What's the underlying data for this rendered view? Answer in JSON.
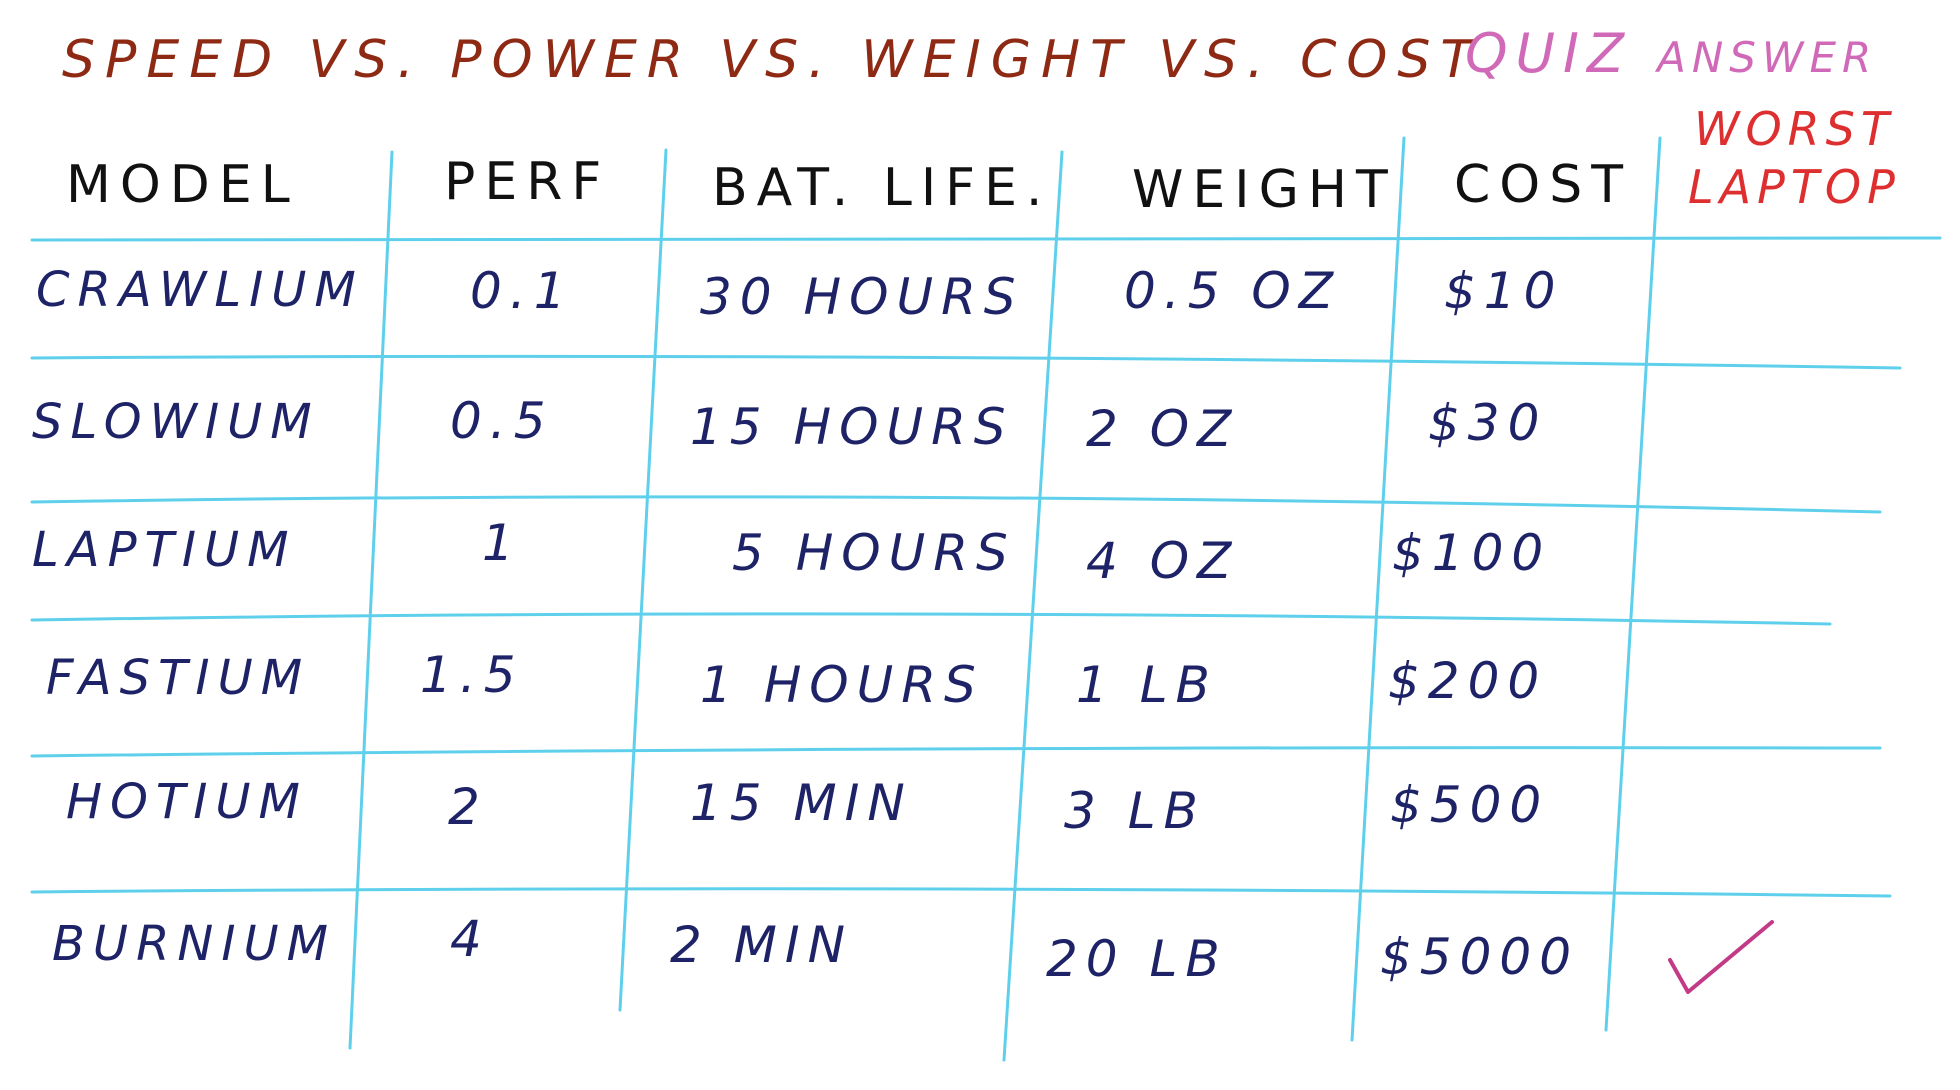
{
  "title": "SPEED VS. POWER VS. WEIGHT VS. COST",
  "quiz": {
    "label": "QUIZ",
    "answer": "ANSWER"
  },
  "worst_column": {
    "line1": "WORST",
    "line2": "LAPTOP"
  },
  "table": {
    "headers": [
      "MODEL",
      "PERF",
      "BAT. LIFE.",
      "WEIGHT",
      "COST"
    ],
    "rows": [
      {
        "model": "CRAWLIUM",
        "perf": "0.1",
        "battery": "30 HOURS",
        "weight": "0.5 OZ",
        "cost": "$10",
        "worst": false
      },
      {
        "model": "SLOWIUM",
        "perf": "0.5",
        "battery": "15 HOURS",
        "weight": "2 OZ",
        "cost": "$30",
        "worst": false
      },
      {
        "model": "LAPTIUM",
        "perf": "1",
        "battery": "5 HOURS",
        "weight": "4 OZ",
        "cost": "$100",
        "worst": false
      },
      {
        "model": "FASTIUM",
        "perf": "1.5",
        "battery": "1 HOURS",
        "weight": "1 LB",
        "cost": "$200",
        "worst": false
      },
      {
        "model": "HOTIUM",
        "perf": "2",
        "battery": "15 MIN",
        "weight": "3 LB",
        "cost": "$500",
        "worst": false
      },
      {
        "model": "BURNIUM",
        "perf": "4",
        "battery": "2 MIN",
        "weight": "20 LB",
        "cost": "$5000",
        "worst": true
      }
    ]
  },
  "colors": {
    "title": "#8e2a14",
    "quiz": "#d06ab8",
    "worst_header": "#dd2f2f",
    "header_text": "#111111",
    "cell_text": "#1d2366",
    "grid": "#5fd0ec",
    "checkmark": "#c33a86"
  }
}
